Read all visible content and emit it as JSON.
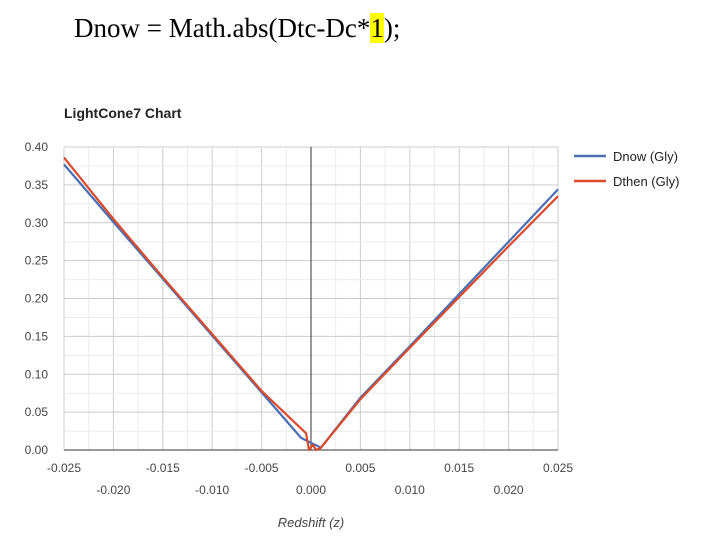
{
  "code": {
    "before": "Dnow = Math.abs(Dtc-Dc*",
    "highlight": "1",
    "after": ");"
  },
  "chart_data": {
    "type": "line",
    "title": "LightCone7 Chart",
    "xlabel": "Redshift (z)",
    "ylabel": "",
    "xlim": [
      -0.025,
      0.025
    ],
    "ylim": [
      0,
      0.4
    ],
    "grid": true,
    "legend_position": "right",
    "x_ticks": [
      -0.025,
      -0.02,
      -0.015,
      -0.01,
      -0.005,
      0,
      0.005,
      0.01,
      0.015,
      0.02,
      0.025
    ],
    "x_tick_labels_upper": [
      "-0.025",
      "-0.015",
      "-0.005",
      "0.005",
      "0.015",
      "0.025"
    ],
    "x_tick_labels_lower": [
      "-0.020",
      "-0.010",
      "0.000",
      "0.010",
      "0.020"
    ],
    "y_ticks": [
      0,
      0.05,
      0.1,
      0.15,
      0.2,
      0.25,
      0.3,
      0.35,
      0.4
    ],
    "y_tick_labels": [
      "0.00",
      "0.05",
      "0.10",
      "0.15",
      "0.20",
      "0.25",
      "0.30",
      "0.35",
      "0.40"
    ],
    "series": [
      {
        "name": "Dnow (Gly)",
        "color": "#4a6fb5",
        "x": [
          -0.025,
          -0.02,
          -0.015,
          -0.01,
          -0.005,
          -0.001,
          0.001,
          0.005,
          0.01,
          0.015,
          0.02,
          0.025
        ],
        "y": [
          0.377,
          0.301,
          0.226,
          0.151,
          0.076,
          0.016,
          0.003,
          0.069,
          0.137,
          0.206,
          0.275,
          0.344
        ]
      },
      {
        "name": "Dthen (Gly)",
        "color": "#db4a2b",
        "x": [
          -0.025,
          -0.02,
          -0.015,
          -0.01,
          -0.005,
          -0.0005,
          -0.0002,
          0.0002,
          0.0005,
          0.001,
          0.005,
          0.01,
          0.015,
          0.02,
          0.025
        ],
        "y": [
          0.386,
          0.305,
          0.228,
          0.153,
          0.078,
          0.022,
          0.0,
          0.007,
          0.0,
          0.003,
          0.067,
          0.135,
          0.202,
          0.269,
          0.335
        ]
      }
    ]
  }
}
